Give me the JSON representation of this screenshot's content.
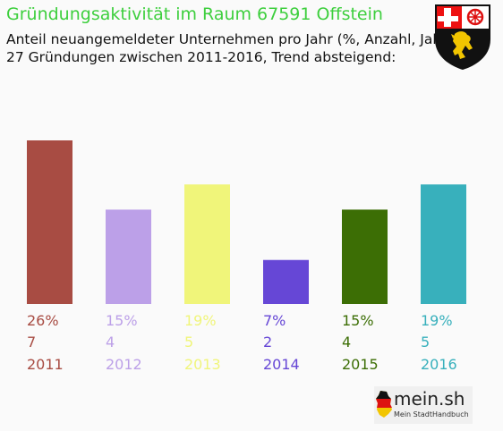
{
  "header": {
    "title": "Gründungsaktivität im Raum 67591 Offstein",
    "subtitle_line1": "Anteil neuangemeldeter Unternehmen pro Jahr (%, Anzahl, Jahr)",
    "subtitle_line2": "27 Gründungen zwischen 2011-2016, Trend absteigend:"
  },
  "crest": {
    "icon": "rhineland-palatinate-coat-of-arms-icon"
  },
  "branding": {
    "logo_text": "mein.sh",
    "logo_sub": "Mein StadtHandbuch",
    "icon": "germany-map-icon"
  },
  "chart_data": {
    "type": "bar",
    "categories": [
      "2011",
      "2012",
      "2013",
      "2014",
      "2015",
      "2016"
    ],
    "values": [
      26,
      15,
      19,
      7,
      15,
      19
    ],
    "counts": [
      7,
      4,
      5,
      2,
      4,
      5
    ],
    "percent_labels": [
      "26%",
      "15%",
      "19%",
      "7%",
      "15%",
      "19%"
    ],
    "count_labels": [
      "7",
      "4",
      "5",
      "2",
      "4",
      "5"
    ],
    "colors": [
      "#a84c43",
      "#bca0e8",
      "#f0f57a",
      "#6647d6",
      "#3c6e05",
      "#38b0bc"
    ],
    "ylim": [
      0,
      26
    ],
    "grid": false,
    "legend": "none"
  }
}
